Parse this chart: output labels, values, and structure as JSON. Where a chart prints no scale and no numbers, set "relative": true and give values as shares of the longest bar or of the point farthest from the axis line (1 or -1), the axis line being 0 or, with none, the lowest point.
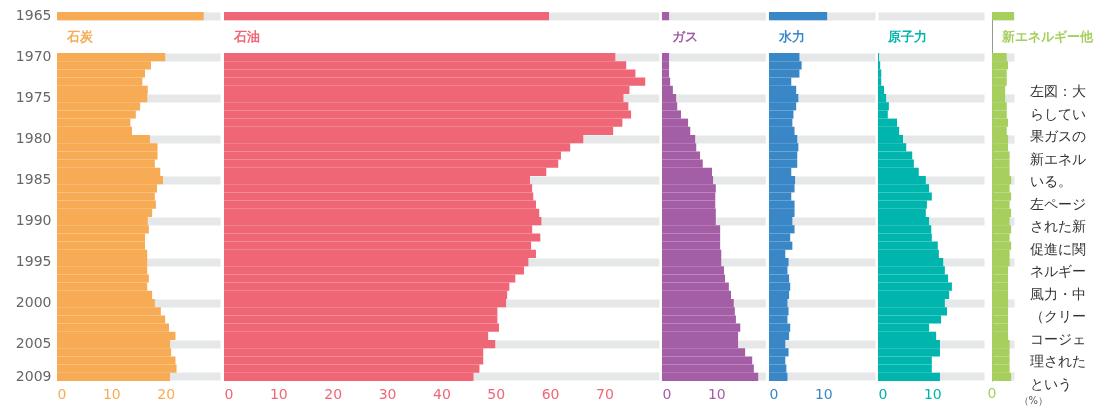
{
  "chart_data": [
    {
      "type": "bar",
      "orientation": "horizontal",
      "title": "石炭",
      "categories": [
        "1965",
        null,
        null,
        null,
        null,
        "1970",
        null,
        null,
        null,
        null,
        "1975",
        null,
        null,
        null,
        null,
        "1980",
        null,
        null,
        null,
        null,
        "1985",
        null,
        null,
        null,
        null,
        "1990",
        null,
        null,
        null,
        null,
        "1995",
        null,
        null,
        null,
        null,
        "2000",
        null,
        null,
        null,
        null,
        "2005",
        null,
        null,
        null,
        "2009"
      ],
      "series": [
        {
          "color": "#f7ab55",
          "values": [
            27.0,
            null,
            null,
            null,
            null,
            19.9,
            17.3,
            16.2,
            15.7,
            16.7,
            16.6,
            15.3,
            14.5,
            13.5,
            13.8,
            17.1,
            18.5,
            18.5,
            18.0,
            19.0,
            19.5,
            18.4,
            18.0,
            18.2,
            17.5,
            16.7,
            16.9,
            16.2,
            16.2,
            16.6,
            16.6,
            16.6,
            16.9,
            16.6,
            17.5,
            18.0,
            19.1,
            19.9,
            20.6,
            21.8,
            20.8,
            21.0,
            21.8,
            22.0,
            20.8
          ]
        }
      ],
      "xlim": [
        0,
        30
      ],
      "xticks": [
        0,
        10,
        20
      ],
      "grid": true
    },
    {
      "type": "bar",
      "orientation": "horizontal",
      "title": "石油",
      "categories": [
        "1965",
        null,
        null,
        null,
        null,
        "1970",
        null,
        null,
        null,
        null,
        "1975",
        null,
        null,
        null,
        null,
        "1980",
        null,
        null,
        null,
        null,
        "1985",
        null,
        null,
        null,
        null,
        "1990",
        null,
        null,
        null,
        null,
        "1995",
        null,
        null,
        null,
        null,
        "2000",
        null,
        null,
        null,
        null,
        "2005",
        null,
        null,
        null,
        "2009"
      ],
      "series": [
        {
          "color": "#ef6677",
          "values": [
            59.8,
            null,
            null,
            null,
            null,
            72.0,
            74.0,
            75.7,
            77.5,
            74.6,
            73.5,
            74.4,
            74.9,
            73.3,
            71.6,
            66.1,
            63.7,
            62.0,
            61.5,
            59.3,
            56.3,
            56.7,
            56.9,
            57.4,
            58.0,
            58.4,
            56.7,
            58.2,
            56.5,
            57.4,
            56.0,
            55.2,
            53.6,
            52.5,
            52.1,
            51.9,
            50.3,
            50.3,
            50.6,
            48.6,
            49.9,
            47.7,
            47.7,
            47.0,
            45.9
          ]
        }
      ],
      "xlim": [
        0,
        80
      ],
      "xticks": [
        0,
        10,
        20,
        30,
        40,
        50,
        60,
        70
      ],
      "grid": true,
      "tick_labels": "x"
    },
    {
      "type": "bar",
      "orientation": "horizontal",
      "title": "ガス",
      "categories": [
        "1965",
        null,
        null,
        null,
        null,
        "1970",
        null,
        null,
        null,
        null,
        "1975",
        null,
        null,
        null,
        null,
        "1980",
        null,
        null,
        null,
        null,
        "1985",
        null,
        null,
        null,
        null,
        "1990",
        null,
        null,
        null,
        null,
        "1995",
        null,
        null,
        null,
        null,
        "2000",
        null,
        null,
        null,
        null,
        "2005",
        null,
        null,
        null,
        "2009"
      ],
      "series": [
        {
          "color": "#a35ea5",
          "values": [
            1.3,
            null,
            null,
            null,
            null,
            1.3,
            1.3,
            1.3,
            1.5,
            2.0,
            2.6,
            2.8,
            3.5,
            4.8,
            5.2,
            6.1,
            6.3,
            7.0,
            7.5,
            9.2,
            9.4,
            9.9,
            9.8,
            9.8,
            9.9,
            9.9,
            10.7,
            10.7,
            10.7,
            10.9,
            10.9,
            11.4,
            11.6,
            12.3,
            12.7,
            13.2,
            13.4,
            13.6,
            14.4,
            14.0,
            14.0,
            15.3,
            16.6,
            16.9,
            17.7
          ]
        }
      ],
      "xlim": [
        0,
        19
      ],
      "xticks": [
        0,
        10
      ],
      "grid": true,
      "tick_labels": "x"
    },
    {
      "type": "bar",
      "orientation": "horizontal",
      "title": "水力",
      "categories": [
        "1965",
        null,
        null,
        null,
        null,
        "1970",
        null,
        null,
        null,
        null,
        "1975",
        null,
        null,
        null,
        null,
        "1980",
        null,
        null,
        null,
        null,
        "1985",
        null,
        null,
        null,
        null,
        "1990",
        null,
        null,
        null,
        null,
        "1995",
        null,
        null,
        null,
        null,
        "2000",
        null,
        null,
        null,
        null,
        "2005",
        null,
        null,
        null,
        "2009"
      ],
      "series": [
        {
          "color": "#3a87c8",
          "values": [
            10.7,
            null,
            null,
            null,
            null,
            5.6,
            6.0,
            5.6,
            4.1,
            5.0,
            5.4,
            5.0,
            4.5,
            4.3,
            4.7,
            5.2,
            5.4,
            5.2,
            5.2,
            4.1,
            4.8,
            4.7,
            4.1,
            4.7,
            4.7,
            4.3,
            4.7,
            3.9,
            4.3,
            3.0,
            3.6,
            3.4,
            3.7,
            3.9,
            3.7,
            3.4,
            3.6,
            3.4,
            3.9,
            3.7,
            3.0,
            3.6,
            3.0,
            3.2,
            3.4
          ]
        }
      ],
      "xlim": [
        0,
        19.5
      ],
      "xticks": [
        0,
        10
      ],
      "grid": true,
      "tick_labels": "x"
    },
    {
      "type": "bar",
      "orientation": "horizontal",
      "title": "原子力",
      "categories": [
        "1965",
        null,
        null,
        null,
        null,
        "1970",
        null,
        null,
        null,
        null,
        "1975",
        null,
        null,
        null,
        null,
        "1980",
        null,
        null,
        null,
        null,
        "1985",
        null,
        null,
        null,
        null,
        "1990",
        null,
        null,
        null,
        null,
        "1995",
        null,
        null,
        null,
        null,
        "2000",
        null,
        null,
        null,
        null,
        "2005",
        null,
        null,
        null,
        "2009"
      ],
      "series": [
        {
          "color": "#00b5ad",
          "values": [
            0,
            null,
            null,
            null,
            null,
            0.2,
            0.4,
            0.6,
            0.6,
            1.1,
            1.5,
            2.0,
            1.8,
            3.5,
            3.9,
            4.6,
            5.2,
            6.3,
            6.6,
            7.5,
            8.8,
            9.4,
            9.9,
            9.0,
            8.8,
            9.4,
            9.8,
            9.9,
            11.0,
            11.2,
            12.0,
            12.3,
            12.9,
            13.6,
            13.1,
            12.3,
            12.7,
            11.6,
            9.4,
            10.7,
            11.4,
            11.4,
            9.9,
            9.9,
            11.4
          ]
        }
      ],
      "xlim": [
        0,
        19.5
      ],
      "xticks": [
        0,
        10
      ],
      "grid": true,
      "tick_labels": "x"
    },
    {
      "type": "bar",
      "orientation": "horizontal",
      "title": "新エネルギー他",
      "xlabel": "（%）",
      "categories": [
        "1965",
        null,
        null,
        null,
        null,
        "1970",
        null,
        null,
        null,
        null,
        "1975",
        null,
        null,
        null,
        null,
        "1980",
        null,
        null,
        null,
        null,
        "1985",
        null,
        null,
        null,
        null,
        "1990",
        null,
        null,
        null,
        null,
        "1995",
        null,
        null,
        null,
        null,
        "2000",
        null,
        null,
        null,
        null,
        "2005",
        null,
        null,
        null,
        "2009"
      ],
      "series": [
        {
          "color": "#a6cf5e",
          "values": [
            1,
            null,
            null,
            null,
            null,
            0.67,
            0.73,
            0.67,
            0.67,
            0.6,
            0.6,
            0.67,
            0.67,
            0.73,
            0.67,
            0.73,
            0.73,
            0.8,
            0.8,
            0.8,
            0.87,
            0.8,
            0.87,
            0.8,
            0.87,
            0.8,
            0.87,
            0.8,
            0.87,
            0.8,
            0.8,
            0.73,
            0.73,
            0.73,
            0.73,
            0.73,
            0.73,
            0.73,
            0.73,
            0.73,
            0.8,
            0.8,
            0.8,
            0.8,
            0.87
          ]
        }
      ],
      "relative": true,
      "grid": "y",
      "tick_labels": "x",
      "annotations": [
        "0"
      ]
    },
    {
      "type": "other",
      "annotations": [
        "左図：大",
        "らしてい",
        "果ガスの",
        "新エネル",
        "いる。",
        "左ページ",
        "された新",
        "促進に関",
        "ネルギー",
        "風力・中",
        "（クリー",
        "コージェ",
        "理された",
        "という"
      ]
    }
  ]
}
